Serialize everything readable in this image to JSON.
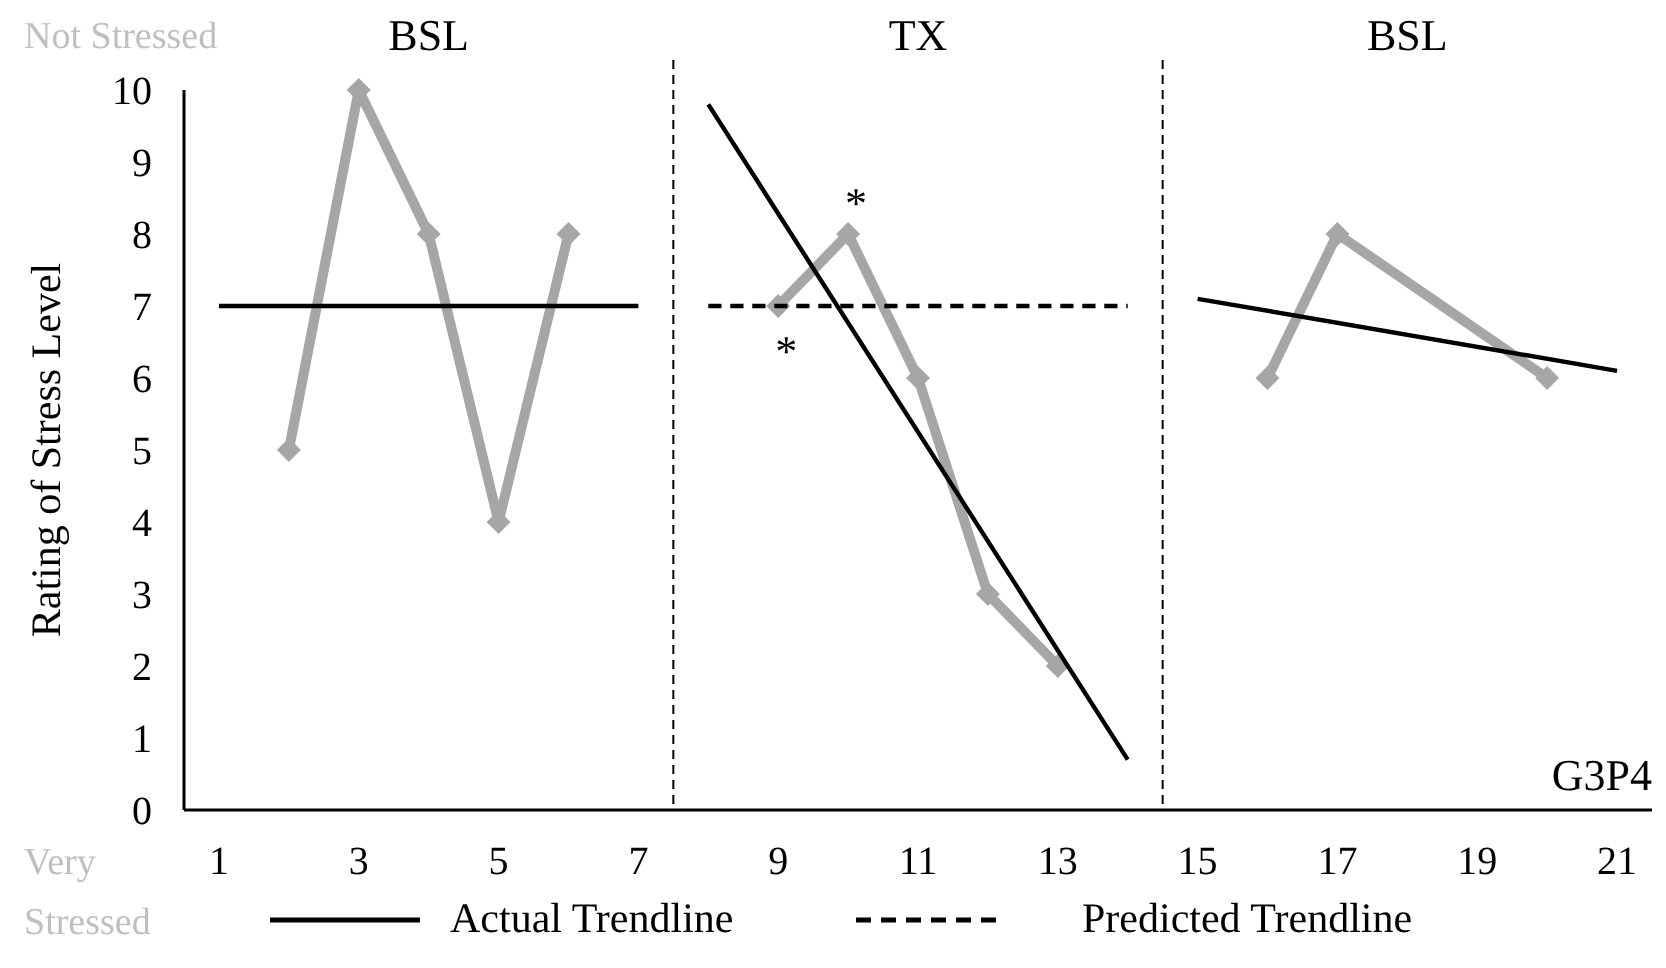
{
  "chart_data": {
    "type": "line",
    "ylabel": "Rating of Stress Level",
    "xlim": [
      0.5,
      21.5
    ],
    "xticks": [
      1,
      3,
      5,
      7,
      9,
      11,
      13,
      15,
      17,
      19,
      21
    ],
    "ylim": [
      0,
      10
    ],
    "yticks": [
      0,
      1,
      2,
      3,
      4,
      5,
      6,
      7,
      8,
      9,
      10
    ],
    "grid": false,
    "legend": "bottom",
    "series": [
      {
        "color": "#a6a6a6",
        "marker": "diamond",
        "x": [
          2,
          3,
          4,
          5,
          6,
          7.5,
          9,
          10,
          11,
          12,
          13,
          14.5,
          16,
          17,
          20
        ],
        "values": [
          5,
          10,
          8,
          4,
          8,
          null,
          7,
          8,
          6,
          3,
          2,
          null,
          6,
          8,
          6
        ]
      },
      {
        "name": "Actual Trendline",
        "color": "#000000",
        "marker": "none",
        "line_style": "solid",
        "x": [
          1,
          7,
          7.5,
          8,
          14,
          14.5,
          15,
          21
        ],
        "values": [
          7,
          7,
          null,
          9.8,
          0.7,
          null,
          7.1,
          6.1
        ]
      },
      {
        "name": "Predicted Trendline",
        "color": "#000000",
        "marker": "none",
        "line_style": "dashed",
        "x": [
          8,
          14
        ],
        "values": [
          7,
          7
        ]
      }
    ],
    "ref_lines": [
      {
        "axis": "x",
        "value": 7.5,
        "line_style": "dashed"
      },
      {
        "axis": "x",
        "value": 14.5,
        "line_style": "dashed"
      }
    ],
    "annotations": [
      "BSL",
      "TX",
      "BSL",
      {
        "text": "*",
        "x": 9,
        "y": 7
      },
      {
        "text": "*",
        "x": 10,
        "y": 8
      },
      "Not Stressed",
      "Very Stressed",
      "G3P4"
    ]
  }
}
